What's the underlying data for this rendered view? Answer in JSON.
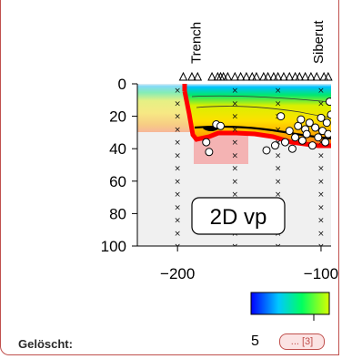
{
  "chart_data": {
    "type": "scatter",
    "title": "",
    "annotation": "2D vp",
    "xlabel": "",
    "ylabel": "",
    "xlim": [
      -228,
      -93
    ],
    "ylim": [
      100,
      0
    ],
    "xticks": [
      -200,
      -100
    ],
    "yticks": [
      0,
      20,
      40,
      60,
      80,
      100
    ],
    "top_labels": [
      {
        "text": "Trench",
        "x": -187
      },
      {
        "text": "Siberut",
        "x": -102
      }
    ],
    "stations_x": [
      -196,
      -190,
      -186,
      -176,
      -172,
      -170,
      -168,
      -165,
      -160,
      -156,
      -152,
      -148,
      -145,
      -140,
      -137,
      -133,
      -130,
      -126,
      -122,
      -118,
      -115,
      -111,
      -107,
      -103,
      -98,
      -95
    ],
    "profile_columns_x": [
      -200,
      -160,
      -130,
      -100
    ],
    "events": [
      {
        "x": -180,
        "y": 36
      },
      {
        "x": -178,
        "y": 42
      },
      {
        "x": -173,
        "y": 25
      },
      {
        "x": -170,
        "y": 26
      },
      {
        "x": -138,
        "y": 41
      },
      {
        "x": -132,
        "y": 38
      },
      {
        "x": -128,
        "y": 20
      },
      {
        "x": -125,
        "y": 36
      },
      {
        "x": -122,
        "y": 29
      },
      {
        "x": -120,
        "y": 40
      },
      {
        "x": -118,
        "y": 33
      },
      {
        "x": -116,
        "y": 26
      },
      {
        "x": -114,
        "y": 22
      },
      {
        "x": -113,
        "y": 35
      },
      {
        "x": -111,
        "y": 28
      },
      {
        "x": -110,
        "y": 31
      },
      {
        "x": -108,
        "y": 24
      },
      {
        "x": -106,
        "y": 38
      },
      {
        "x": -104,
        "y": 27
      },
      {
        "x": -102,
        "y": 33
      },
      {
        "x": -100,
        "y": 21
      },
      {
        "x": -99,
        "y": 29
      },
      {
        "x": -97,
        "y": 36
      },
      {
        "x": -96,
        "y": 24
      },
      {
        "x": -95,
        "y": 31
      },
      {
        "x": -94,
        "y": 11
      },
      {
        "x": -93,
        "y": 19
      }
    ],
    "colorbar": {
      "colors": [
        "#0000ff",
        "#00c8ff",
        "#00ff60",
        "#d8ff00"
      ],
      "tick_label": "5"
    },
    "colors": {
      "model_boundary": "#ff0000",
      "slab_line": "#000000",
      "mask": "#eeeeee"
    }
  },
  "footer": {
    "label": "Gelöscht:",
    "number": "5",
    "ref": "... [3]"
  }
}
